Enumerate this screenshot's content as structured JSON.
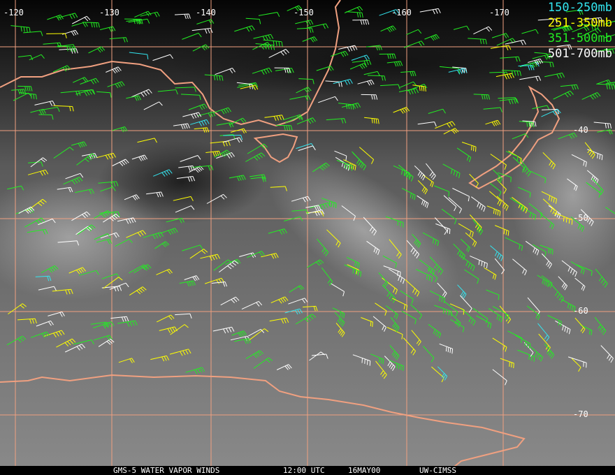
{
  "title": "GMS-5 WATER VAPOR WINDS",
  "time": "12:00 UTC",
  "date": "16MAY00",
  "credit": "UW-CIMSS",
  "longitude_labels": [
    "-120",
    "-130",
    "-140",
    "-150",
    "-160",
    "-170"
  ],
  "latitude_labels": [
    "-40",
    "-50",
    "-60",
    "-70"
  ],
  "legend": [
    {
      "label": "150-250mb",
      "color": "#33e6f0"
    },
    {
      "label": "251-350mb",
      "color": "#ffff00"
    },
    {
      "label": "351-500mb",
      "color": "#22ee22"
    },
    {
      "label": "501-700mb",
      "color": "#ffffff"
    }
  ],
  "colors": {
    "grid": "#f0a080",
    "coastline": "#f0a080"
  }
}
